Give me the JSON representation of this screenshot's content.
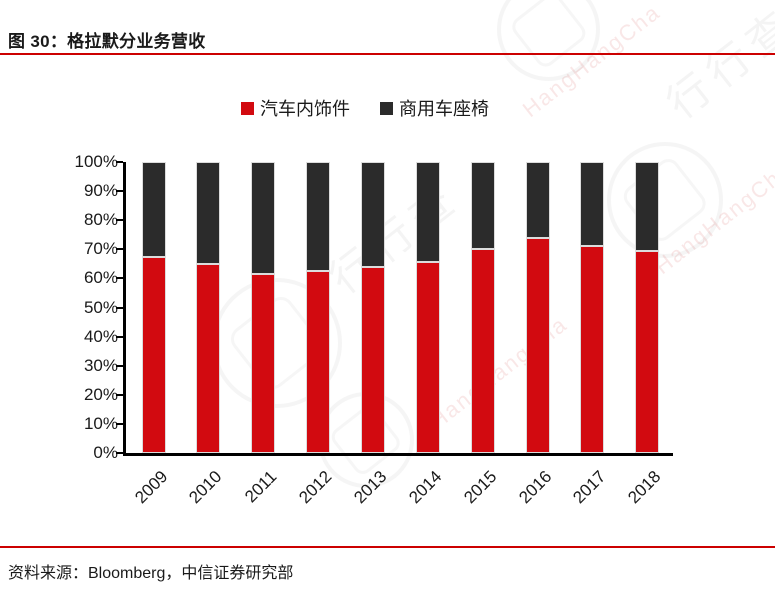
{
  "figure": {
    "title": "图 30：格拉默分业务营收",
    "source": "资料来源：Bloomberg，中信证券研究部"
  },
  "colors": {
    "accent_rule": "#cc0000",
    "series_red": "#d20a10",
    "series_dark": "#2b2b2b",
    "axis": "#000000"
  },
  "watermark": {
    "cn": "行行查",
    "en": "HangHangCha"
  },
  "chart_data": {
    "type": "bar",
    "stacked": true,
    "percent_stacked": true,
    "title": "格拉默分业务营收",
    "categories": [
      "2009",
      "2010",
      "2011",
      "2012",
      "2013",
      "2014",
      "2015",
      "2016",
      "2017",
      "2018"
    ],
    "series": [
      {
        "name": "汽车内饰件",
        "color": "#d20a10",
        "values": [
          67.5,
          65.0,
          61.5,
          62.5,
          64.0,
          65.5,
          70.0,
          74.0,
          71.0,
          69.5
        ]
      },
      {
        "name": "商用车座椅",
        "color": "#2b2b2b",
        "values": [
          32.5,
          35.0,
          38.5,
          37.5,
          36.0,
          34.5,
          30.0,
          26.0,
          29.0,
          30.5
        ]
      }
    ],
    "unit": "%",
    "ylim": [
      0,
      100
    ],
    "ytick_step": 10,
    "ytick_labels": [
      "0%",
      "10%",
      "20%",
      "30%",
      "40%",
      "50%",
      "60%",
      "70%",
      "80%",
      "90%",
      "100%"
    ],
    "xlabel": "",
    "ylabel": "",
    "grid": false,
    "legend_position": "top-center",
    "x_label_rotation": -45
  }
}
